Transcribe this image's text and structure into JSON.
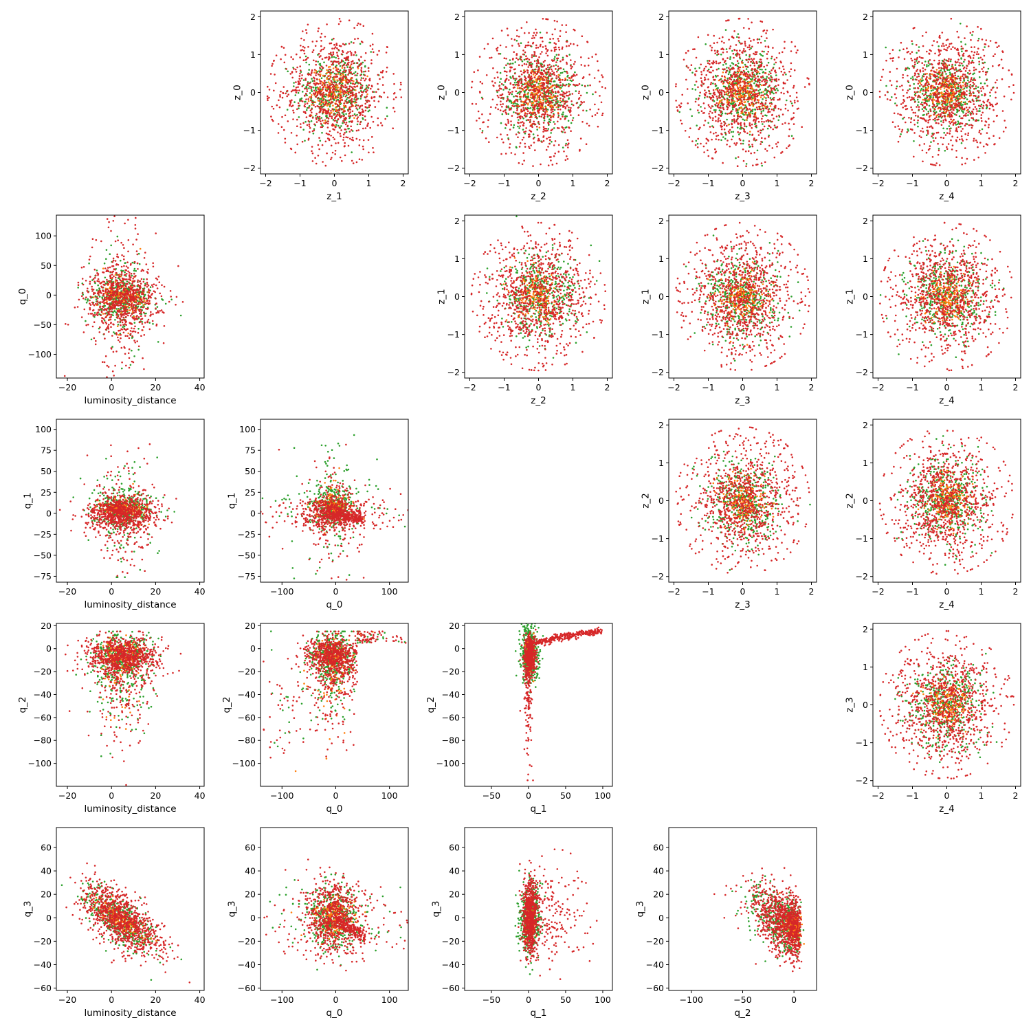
{
  "colors": {
    "orange": "#ff7f0e",
    "green": "#2ca02c",
    "red": "#d62728"
  },
  "chart_data": {
    "type": "scatter",
    "layout": "lower-upper triangle pair plot, 5x5 grid",
    "series": [
      {
        "color": "orange"
      },
      {
        "color": "green"
      },
      {
        "color": "red"
      }
    ],
    "panels": [
      {
        "row": 0,
        "col": 1,
        "xlabel": "z_1",
        "ylabel": "z_0",
        "xlim": [
          -2.15,
          2.15
        ],
        "ylim": [
          -2.15,
          2.15
        ],
        "xticks": [
          -2,
          -1,
          0,
          1,
          2
        ],
        "yticks": [
          -2,
          -1,
          0,
          1,
          2
        ],
        "dist": "normal"
      },
      {
        "row": 0,
        "col": 2,
        "xlabel": "z_2",
        "ylabel": "z_0",
        "xlim": [
          -2.15,
          2.15
        ],
        "ylim": [
          -2.15,
          2.15
        ],
        "xticks": [
          -2,
          -1,
          0,
          1,
          2
        ],
        "yticks": [
          -2,
          -1,
          0,
          1,
          2
        ],
        "dist": "normal"
      },
      {
        "row": 0,
        "col": 3,
        "xlabel": "z_3",
        "ylabel": "z_0",
        "xlim": [
          -2.15,
          2.15
        ],
        "ylim": [
          -2.15,
          2.15
        ],
        "xticks": [
          -2,
          -1,
          0,
          1,
          2
        ],
        "yticks": [
          -2,
          -1,
          0,
          1,
          2
        ],
        "dist": "normal"
      },
      {
        "row": 0,
        "col": 4,
        "xlabel": "z_4",
        "ylabel": "z_0",
        "xlim": [
          -2.15,
          2.15
        ],
        "ylim": [
          -2.15,
          2.15
        ],
        "xticks": [
          -2,
          -1,
          0,
          1,
          2
        ],
        "yticks": [
          -2,
          -1,
          0,
          1,
          2
        ],
        "dist": "normal"
      },
      {
        "row": 1,
        "col": 0,
        "xlabel": "luminosity_distance",
        "ylabel": "q_0",
        "xlim": [
          -25,
          42
        ],
        "ylim": [
          -140,
          135
        ],
        "xticks": [
          -20,
          0,
          20,
          40
        ],
        "yticks": [
          -100,
          -50,
          0,
          50,
          100
        ],
        "dist": "ld_q0"
      },
      {
        "row": 1,
        "col": 2,
        "xlabel": "z_2",
        "ylabel": "z_1",
        "xlim": [
          -2.15,
          2.15
        ],
        "ylim": [
          -2.15,
          2.15
        ],
        "xticks": [
          -2,
          -1,
          0,
          1,
          2
        ],
        "yticks": [
          -2,
          -1,
          0,
          1,
          2
        ],
        "dist": "normal"
      },
      {
        "row": 1,
        "col": 3,
        "xlabel": "z_3",
        "ylabel": "z_1",
        "xlim": [
          -2.15,
          2.15
        ],
        "ylim": [
          -2.15,
          2.15
        ],
        "xticks": [
          -2,
          -1,
          0,
          1,
          2
        ],
        "yticks": [
          -2,
          -1,
          0,
          1,
          2
        ],
        "dist": "normal"
      },
      {
        "row": 1,
        "col": 4,
        "xlabel": "z_4",
        "ylabel": "z_1",
        "xlim": [
          -2.15,
          2.15
        ],
        "ylim": [
          -2.15,
          2.15
        ],
        "xticks": [
          -2,
          -1,
          0,
          1,
          2
        ],
        "yticks": [
          -2,
          -1,
          0,
          1,
          2
        ],
        "dist": "normal"
      },
      {
        "row": 2,
        "col": 0,
        "xlabel": "luminosity_distance",
        "ylabel": "q_1",
        "xlim": [
          -25,
          42
        ],
        "ylim": [
          -82,
          112
        ],
        "xticks": [
          -20,
          0,
          20,
          40
        ],
        "yticks": [
          -75,
          -50,
          -25,
          0,
          25,
          50,
          75,
          100
        ],
        "dist": "ld_q1"
      },
      {
        "row": 2,
        "col": 1,
        "xlabel": "q_0",
        "ylabel": "q_1",
        "xlim": [
          -140,
          135
        ],
        "ylim": [
          -82,
          112
        ],
        "xticks": [
          -100,
          0,
          100
        ],
        "yticks": [
          -75,
          -50,
          -25,
          0,
          25,
          50,
          75,
          100
        ],
        "dist": "q0_q1"
      },
      {
        "row": 2,
        "col": 3,
        "xlabel": "z_3",
        "ylabel": "z_2",
        "xlim": [
          -2.15,
          2.15
        ],
        "ylim": [
          -2.15,
          2.15
        ],
        "xticks": [
          -2,
          -1,
          0,
          1,
          2
        ],
        "yticks": [
          -2,
          -1,
          0,
          1,
          2
        ],
        "dist": "normal"
      },
      {
        "row": 2,
        "col": 4,
        "xlabel": "z_4",
        "ylabel": "z_2",
        "xlim": [
          -2.15,
          2.15
        ],
        "ylim": [
          -2.15,
          2.15
        ],
        "xticks": [
          -2,
          -1,
          0,
          1,
          2
        ],
        "yticks": [
          -2,
          -1,
          0,
          1,
          2
        ],
        "dist": "normal"
      },
      {
        "row": 3,
        "col": 0,
        "xlabel": "luminosity_distance",
        "ylabel": "q_2",
        "xlim": [
          -25,
          42
        ],
        "ylim": [
          -120,
          22
        ],
        "xticks": [
          -20,
          0,
          20,
          40
        ],
        "yticks": [
          -100,
          -80,
          -60,
          -40,
          -20,
          0,
          20
        ],
        "dist": "ld_q2"
      },
      {
        "row": 3,
        "col": 1,
        "xlabel": "q_0",
        "ylabel": "q_2",
        "xlim": [
          -140,
          135
        ],
        "ylim": [
          -120,
          22
        ],
        "xticks": [
          -100,
          0,
          100
        ],
        "yticks": [
          -100,
          -80,
          -60,
          -40,
          -20,
          0,
          20
        ],
        "dist": "q0_q2"
      },
      {
        "row": 3,
        "col": 2,
        "xlabel": "q_1",
        "ylabel": "q_2",
        "xlim": [
          -86,
          113
        ],
        "ylim": [
          -120,
          22
        ],
        "xticks": [
          -50,
          0,
          50,
          100
        ],
        "yticks": [
          -100,
          -80,
          -60,
          -40,
          -20,
          0,
          20
        ],
        "dist": "q1_q2"
      },
      {
        "row": 3,
        "col": 4,
        "xlabel": "z_4",
        "ylabel": "z_3",
        "xlim": [
          -2.15,
          2.15
        ],
        "ylim": [
          -2.15,
          2.15
        ],
        "xticks": [
          -2,
          -1,
          0,
          1,
          2
        ],
        "yticks": [
          -2,
          -1,
          0,
          1,
          2
        ],
        "dist": "normal"
      },
      {
        "row": 4,
        "col": 0,
        "xlabel": "luminosity_distance",
        "ylabel": "q_3",
        "xlim": [
          -25,
          42
        ],
        "ylim": [
          -62,
          77
        ],
        "xticks": [
          -20,
          0,
          20,
          40
        ],
        "yticks": [
          -60,
          -40,
          -20,
          0,
          20,
          40,
          60
        ],
        "dist": "ld_q3"
      },
      {
        "row": 4,
        "col": 1,
        "xlabel": "q_0",
        "ylabel": "q_3",
        "xlim": [
          -140,
          135
        ],
        "ylim": [
          -62,
          77
        ],
        "xticks": [
          -100,
          0,
          100
        ],
        "yticks": [
          -60,
          -40,
          -20,
          0,
          20,
          40,
          60
        ],
        "dist": "q0_q3"
      },
      {
        "row": 4,
        "col": 2,
        "xlabel": "q_1",
        "ylabel": "q_3",
        "xlim": [
          -86,
          113
        ],
        "ylim": [
          -62,
          77
        ],
        "xticks": [
          -50,
          0,
          50,
          100
        ],
        "yticks": [
          -60,
          -40,
          -20,
          0,
          20,
          40,
          60
        ],
        "dist": "q1_q3"
      },
      {
        "row": 4,
        "col": 3,
        "xlabel": "q_2",
        "ylabel": "q_3",
        "xlim": [
          -122,
          22
        ],
        "ylim": [
          -62,
          77
        ],
        "xticks": [
          -100,
          -50,
          0
        ],
        "yticks": [
          -60,
          -40,
          -20,
          0,
          20,
          40,
          60
        ],
        "dist": "q2_q3"
      }
    ]
  }
}
